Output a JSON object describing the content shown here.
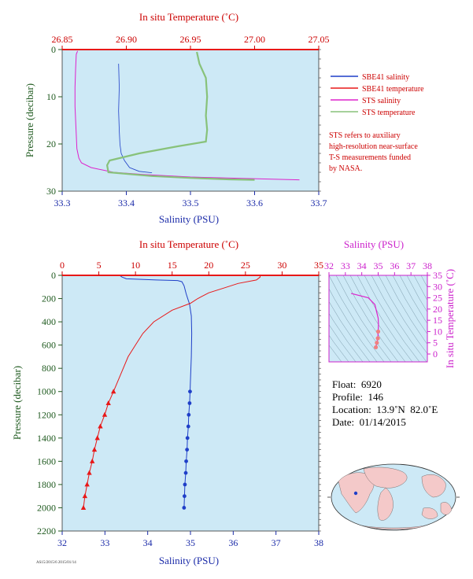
{
  "colors": {
    "plot_bg": "#cde9f6",
    "salinity": "#1f3fc8",
    "temperature": "#e81818",
    "sts_salinity": "#dd22cc",
    "sts_temperature": "#88c27a",
    "axis_red": "#cc0000",
    "axis_blue": "#1a2aa8",
    "axis_green": "#1f5a1f",
    "axis_magenta": "#cc22cc"
  },
  "chart_data": [
    {
      "id": "near_surface",
      "type": "line",
      "top_axis_label": "In situ Temperature (˚C)",
      "top_ticks": [
        "26.85",
        "26.90",
        "26.95",
        "27.00",
        "27.05"
      ],
      "top_range": [
        26.85,
        27.05
      ],
      "bottom_axis_label": "Salinity (PSU)",
      "bottom_ticks": [
        "33.3",
        "33.4",
        "33.5",
        "33.6",
        "33.7"
      ],
      "bottom_range": [
        33.3,
        33.7
      ],
      "ylabel": "Pressure (decibar)",
      "y_ticks": [
        "0",
        "10",
        "20",
        "30"
      ],
      "y_range": [
        0,
        30
      ],
      "series": [
        {
          "name": "SBE41 salinity",
          "axis": "bottom",
          "points": [
            [
              33.388,
              3
            ],
            [
              33.389,
              8
            ],
            [
              33.388,
              13
            ],
            [
              33.389,
              17
            ],
            [
              33.39,
              20
            ],
            [
              33.392,
              22
            ],
            [
              33.397,
              23.5
            ],
            [
              33.405,
              25
            ],
            [
              33.42,
              25.8
            ],
            [
              33.44,
              26.1
            ]
          ]
        },
        {
          "name": "SBE41 temperature",
          "axis": "top",
          "points": []
        },
        {
          "name": "STS salinity",
          "axis": "bottom",
          "points": [
            [
              33.324,
              0.3
            ],
            [
              33.322,
              1
            ],
            [
              33.321,
              4
            ],
            [
              33.32,
              8
            ],
            [
              33.32,
              12
            ],
            [
              33.321,
              15
            ],
            [
              33.322,
              18
            ],
            [
              33.323,
              21
            ],
            [
              33.326,
              23
            ],
            [
              33.33,
              24
            ],
            [
              33.345,
              25
            ],
            [
              33.38,
              26
            ],
            [
              33.43,
              26.5
            ],
            [
              33.5,
              27
            ],
            [
              33.58,
              27.3
            ],
            [
              33.67,
              27.6
            ]
          ]
        },
        {
          "name": "STS temperature",
          "axis": "top",
          "points": [
            [
              26.955,
              0.5
            ],
            [
              26.957,
              3
            ],
            [
              26.962,
              6
            ],
            [
              26.963,
              10
            ],
            [
              26.962,
              14
            ],
            [
              26.963,
              17
            ],
            [
              26.962,
              19.5
            ],
            [
              26.94,
              20.5
            ],
            [
              26.91,
              22
            ],
            [
              26.887,
              23.5
            ],
            [
              26.885,
              24.5
            ],
            [
              26.886,
              26
            ],
            [
              26.92,
              26.8
            ],
            [
              26.95,
              27.2
            ],
            [
              26.98,
              27.5
            ],
            [
              27.0,
              27.6
            ]
          ]
        }
      ]
    },
    {
      "id": "full_profile",
      "type": "line",
      "top_axis_label": "In situ Temperature (˚C)",
      "top_ticks": [
        "0",
        "5",
        "10",
        "15",
        "20",
        "25",
        "30",
        "35"
      ],
      "top_range": [
        0,
        35
      ],
      "bottom_axis_label": "Salinity (PSU)",
      "bottom_ticks": [
        "32",
        "33",
        "34",
        "35",
        "36",
        "37",
        "38"
      ],
      "bottom_range": [
        32,
        38
      ],
      "ylabel": "Pressure (decibar)",
      "y_ticks": [
        "0",
        "200",
        "400",
        "600",
        "800",
        "1000",
        "1200",
        "1400",
        "1600",
        "1800",
        "2000",
        "2200"
      ],
      "y_range": [
        0,
        2200
      ],
      "series": [
        {
          "name": "Salinity",
          "axis": "bottom",
          "points": [
            [
              33.35,
              2
            ],
            [
              33.4,
              15
            ],
            [
              33.5,
              30
            ],
            [
              34.2,
              40
            ],
            [
              34.7,
              45
            ],
            [
              34.8,
              55
            ],
            [
              34.85,
              90
            ],
            [
              34.9,
              160
            ],
            [
              34.98,
              250
            ],
            [
              35.02,
              350
            ],
            [
              35.03,
              500
            ],
            [
              35.02,
              700
            ],
            [
              35.0,
              900
            ],
            [
              34.99,
              1000
            ],
            [
              34.98,
              1100
            ],
            [
              34.96,
              1200
            ],
            [
              34.95,
              1300
            ],
            [
              34.93,
              1400
            ],
            [
              34.92,
              1500
            ],
            [
              34.9,
              1600
            ],
            [
              34.89,
              1700
            ],
            [
              34.87,
              1800
            ],
            [
              34.86,
              1900
            ],
            [
              34.85,
              2000
            ]
          ]
        },
        {
          "name": "Temperature",
          "axis": "top",
          "points": [
            [
              27.0,
              2
            ],
            [
              27.0,
              15
            ],
            [
              26.5,
              40
            ],
            [
              24.0,
              70
            ],
            [
              22.0,
              110
            ],
            [
              20.0,
              150
            ],
            [
              18.5,
              200
            ],
            [
              17.5,
              240
            ],
            [
              15.0,
              300
            ],
            [
              12.5,
              400
            ],
            [
              11.0,
              500
            ],
            [
              10.0,
              600
            ],
            [
              9.0,
              700
            ],
            [
              8.0,
              850
            ],
            [
              7.0,
              1000
            ],
            [
              6.3,
              1100
            ],
            [
              5.8,
              1200
            ],
            [
              5.2,
              1300
            ],
            [
              4.8,
              1400
            ],
            [
              4.4,
              1500
            ],
            [
              4.1,
              1600
            ],
            [
              3.7,
              1700
            ],
            [
              3.4,
              1800
            ],
            [
              3.1,
              1900
            ],
            [
              2.9,
              2000
            ]
          ]
        }
      ]
    },
    {
      "id": "ts_diagram",
      "type": "scatter",
      "top_axis_label": "Salinity (PSU)",
      "top_ticks": [
        "32",
        "33",
        "34",
        "35",
        "36",
        "37",
        "38"
      ],
      "top_range": [
        32,
        38
      ],
      "right_axis_label": "In situ Temperature (˚C)",
      "right_ticks": [
        "0",
        "5",
        "10",
        "15",
        "20",
        "25",
        "30",
        "35"
      ],
      "right_range": [
        0,
        35
      ],
      "series": [
        {
          "name": "T-S",
          "points": [
            [
              33.35,
              27
            ],
            [
              33.6,
              26.5
            ],
            [
              34.4,
              25
            ],
            [
              34.8,
              22
            ],
            [
              34.9,
              19
            ],
            [
              35.0,
              16
            ],
            [
              35.02,
              13
            ],
            [
              35.0,
              10
            ],
            [
              34.98,
              7
            ],
            [
              34.92,
              5
            ],
            [
              34.86,
              3
            ]
          ]
        }
      ]
    }
  ],
  "legend": {
    "items": [
      {
        "label": "SBE41 salinity",
        "color": "#1f3fc8"
      },
      {
        "label": "SBE41 temperature",
        "color": "#e81818"
      },
      {
        "label": "STS salinity",
        "color": "#dd22cc"
      },
      {
        "label": "STS temperature",
        "color": "#88c27a"
      }
    ],
    "note": [
      "STS refers to auxiliary",
      "high-resolution near-surface",
      "T-S measurements funded",
      "by NASA."
    ]
  },
  "float_info": {
    "float": "Float:  6920",
    "profile": "Profile:  146",
    "location": "Location:  13.9˚N  82.0˚E",
    "date": "Date:  01/14/2015"
  },
  "footer_code": "AS15/2015/6 2015/01/14"
}
